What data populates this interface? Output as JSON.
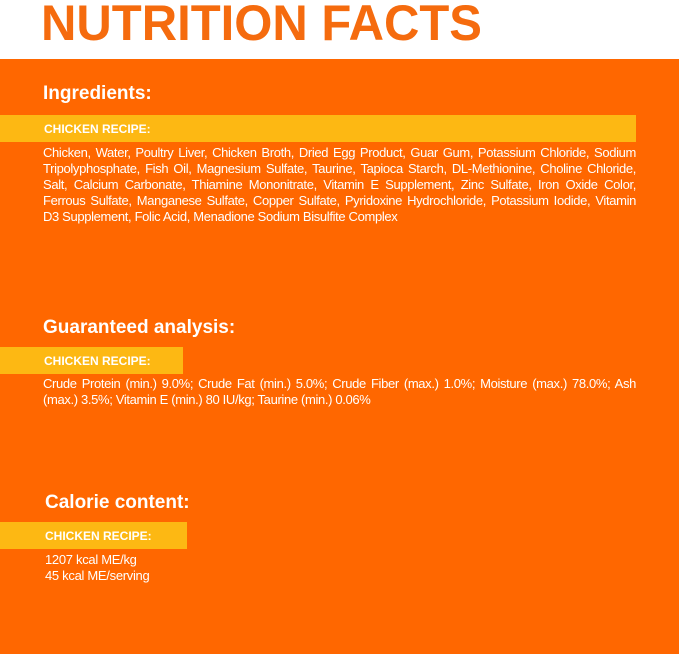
{
  "title": "NUTRITION FACTS",
  "colors": {
    "orange": "#FF6700",
    "yellow": "#FDB813",
    "title": "#F56B0E",
    "text": "#FFFFFF"
  },
  "sections": [
    {
      "heading": "Ingredients:",
      "recipe_label": "CHICKEN RECIPE:",
      "text": "Chicken, Water, Poultry Liver, Chicken Broth, Dried Egg Product, Guar Gum, Potassium Chloride, Sodium Tripolyphosphate, Fish Oil, Magnesium Sulfate, Taurine, Tapioca Starch, DL-Methionine, Choline Chloride, Salt, Calcium Carbonate, Thiamine Mononitrate, Vitamin E Supplement, Zinc Sulfate, Iron Oxide Color, Ferrous Sulfate, Manganese Sulfate, Copper Sulfate, Pyridoxine Hydrochloride, Potassium Iodide, Vitamin D3 Supplement, Folic Acid, Menadione Sodium Bisulfite Complex"
    },
    {
      "heading": "Guaranteed analysis:",
      "recipe_label": "CHICKEN RECIPE:",
      "text": "Crude Protein (min.) 9.0%; Crude Fat (min.) 5.0%; Crude Fiber (max.) 1.0%; Moisture (max.) 78.0%; Ash (max.) 3.5%; Vitamin E (min.) 80 IU/kg; Taurine (min.) 0.06%"
    },
    {
      "heading": "Calorie content:",
      "recipe_label": "CHICKEN RECIPE:",
      "lines": [
        "1207 kcal ME/kg",
        "45 kcal ME/serving"
      ]
    }
  ]
}
